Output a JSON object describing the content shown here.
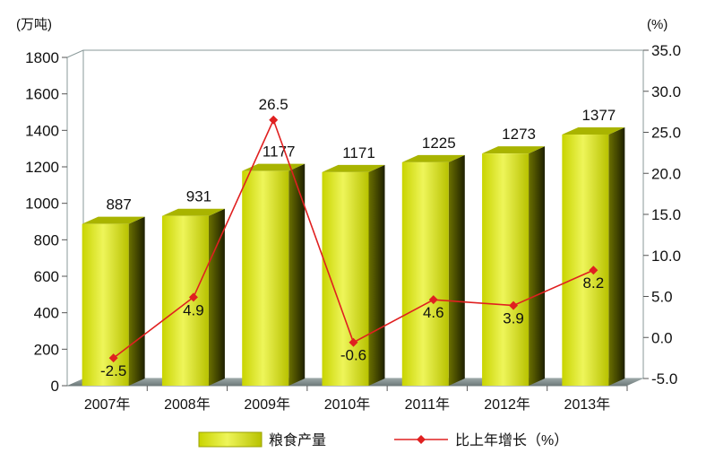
{
  "chart_data": {
    "type": "bar",
    "categories": [
      "2007年",
      "2008年",
      "2009年",
      "2010年",
      "2011年",
      "2012年",
      "2013年"
    ],
    "series": [
      {
        "name": "粮食产量",
        "type": "bar",
        "axis": "left",
        "values": [
          887,
          931,
          1177,
          1171,
          1225,
          1273,
          1377
        ],
        "color": "#d4e000"
      },
      {
        "name": "比上年增长（%）",
        "type": "line",
        "axis": "right",
        "values": [
          -2.5,
          4.9,
          26.5,
          -0.6,
          4.6,
          3.9,
          8.2
        ],
        "color": "#e02020"
      }
    ],
    "left_axis": {
      "label": "(万吨)",
      "ylim": [
        0,
        1800
      ],
      "ticks": [
        "0",
        "200",
        "400",
        "600",
        "800",
        "1000",
        "1200",
        "1400",
        "1600",
        "1800"
      ]
    },
    "right_axis": {
      "label": "(%)",
      "ylim": [
        -5,
        35
      ],
      "ticks": [
        "-5.0",
        "0.0",
        "5.0",
        "10.0",
        "15.0",
        "20.0",
        "25.0",
        "30.0",
        "35.0"
      ]
    },
    "grid": false,
    "legend": "bottom",
    "style": "3d"
  }
}
